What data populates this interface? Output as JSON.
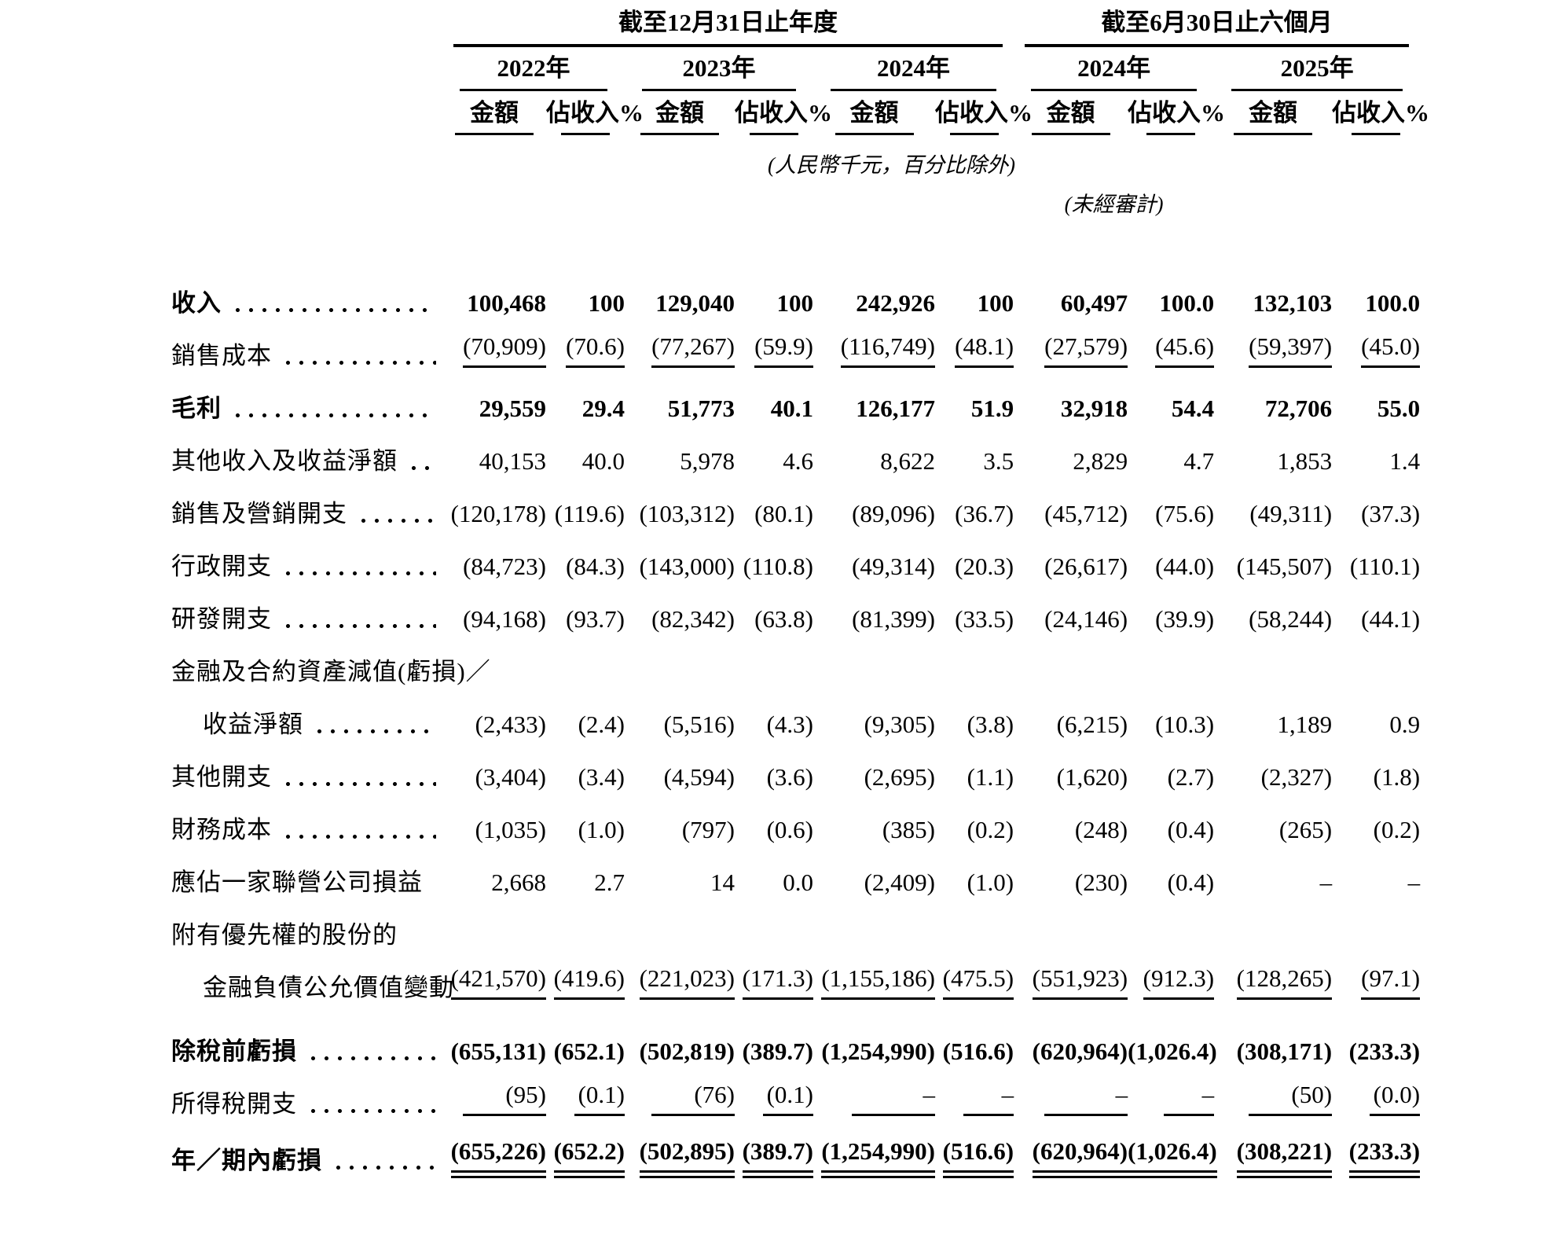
{
  "table": {
    "groups": [
      {
        "title": "截至12月31日止年度",
        "years": [
          "2022年",
          "2023年",
          "2024年"
        ]
      },
      {
        "title": "截至6月30日止六個月",
        "years": [
          "2024年",
          "2025年"
        ]
      }
    ],
    "subheaders": {
      "amount": "金額",
      "pct": "佔收入%"
    },
    "notes": {
      "units": "(人民幣千元，百分比除外)",
      "unaudited": "(未經審計)"
    },
    "rows": [
      {
        "label": "收入",
        "dots": true,
        "bold": true,
        "underline": "none",
        "values": [
          "100,468",
          "100",
          "129,040",
          "100",
          "242,926",
          "100",
          "60,497",
          "100.0",
          "132,103",
          "100.0"
        ]
      },
      {
        "label": "銷售成本",
        "dots": true,
        "bold": false,
        "underline": "single",
        "values": [
          "(70,909)",
          "(70.6)",
          "(77,267)",
          "(59.9)",
          "(116,749)",
          "(48.1)",
          "(27,579)",
          "(45.6)",
          "(59,397)",
          "(45.0)"
        ]
      },
      {
        "label": "毛利",
        "dots": true,
        "bold": true,
        "underline": "none",
        "values": [
          "29,559",
          "29.4",
          "51,773",
          "40.1",
          "126,177",
          "51.9",
          "32,918",
          "54.4",
          "72,706",
          "55.0"
        ]
      },
      {
        "label": "其他收入及收益淨額",
        "dots": true,
        "bold": false,
        "underline": "none",
        "values": [
          "40,153",
          "40.0",
          "5,978",
          "4.6",
          "8,622",
          "3.5",
          "2,829",
          "4.7",
          "1,853",
          "1.4"
        ]
      },
      {
        "label": "銷售及營銷開支",
        "dots": true,
        "bold": false,
        "underline": "none",
        "values": [
          "(120,178)",
          "(119.6)",
          "(103,312)",
          "(80.1)",
          "(89,096)",
          "(36.7)",
          "(45,712)",
          "(75.6)",
          "(49,311)",
          "(37.3)"
        ]
      },
      {
        "label": "行政開支",
        "dots": true,
        "bold": false,
        "underline": "none",
        "values": [
          "(84,723)",
          "(84.3)",
          "(143,000)",
          "(110.8)",
          "(49,314)",
          "(20.3)",
          "(26,617)",
          "(44.0)",
          "(145,507)",
          "(110.1)"
        ]
      },
      {
        "label": "研發開支",
        "dots": true,
        "bold": false,
        "underline": "none",
        "values": [
          "(94,168)",
          "(93.7)",
          "(82,342)",
          "(63.8)",
          "(81,399)",
          "(33.5)",
          "(24,146)",
          "(39.9)",
          "(58,244)",
          "(44.1)"
        ]
      },
      {
        "label": "金融及合約資產減值(虧損)／",
        "dots": false,
        "bold": false,
        "underline": "none",
        "values": null
      },
      {
        "label": "收益淨額",
        "dots": true,
        "bold": false,
        "indent": 1,
        "underline": "none",
        "values": [
          "(2,433)",
          "(2.4)",
          "(5,516)",
          "(4.3)",
          "(9,305)",
          "(3.8)",
          "(6,215)",
          "(10.3)",
          "1,189",
          "0.9"
        ]
      },
      {
        "label": "其他開支",
        "dots": true,
        "bold": false,
        "underline": "none",
        "values": [
          "(3,404)",
          "(3.4)",
          "(4,594)",
          "(3.6)",
          "(2,695)",
          "(1.1)",
          "(1,620)",
          "(2.7)",
          "(2,327)",
          "(1.8)"
        ]
      },
      {
        "label": "財務成本",
        "dots": true,
        "bold": false,
        "underline": "none",
        "values": [
          "(1,035)",
          "(1.0)",
          "(797)",
          "(0.6)",
          "(385)",
          "(0.2)",
          "(248)",
          "(0.4)",
          "(265)",
          "(0.2)"
        ]
      },
      {
        "label": "應佔一家聯營公司損益",
        "dots": true,
        "bold": false,
        "underline": "none",
        "values": [
          "2,668",
          "2.7",
          "14",
          "0.0",
          "(2,409)",
          "(1.0)",
          "(230)",
          "(0.4)",
          "–",
          "–"
        ]
      },
      {
        "label": "附有優先權的股份的",
        "dots": false,
        "bold": false,
        "underline": "none",
        "values": null
      },
      {
        "label": "金融負債公允價值變動",
        "dots": true,
        "bold": false,
        "indent": 1,
        "underline": "single",
        "values": [
          "(421,570)",
          "(419.6)",
          "(221,023)",
          "(171.3)",
          "(1,155,186)",
          "(475.5)",
          "(551,923)",
          "(912.3)",
          "(128,265)",
          "(97.1)"
        ]
      },
      {
        "label": "除稅前虧損",
        "dots": true,
        "bold": true,
        "underline": "none",
        "gapBefore": true,
        "values": [
          "(655,131)",
          "(652.1)",
          "(502,819)",
          "(389.7)",
          "(1,254,990)",
          "(516.6)",
          "(620,964)",
          "(1,026.4)",
          "(308,171)",
          "(233.3)"
        ]
      },
      {
        "label": "所得稅開支",
        "dots": true,
        "bold": false,
        "underline": "single",
        "values": [
          "(95)",
          "(0.1)",
          "(76)",
          "(0.1)",
          "–",
          "–",
          "–",
          "–",
          "(50)",
          "(0.0)"
        ]
      },
      {
        "label": "年／期內虧損",
        "dots": true,
        "bold": true,
        "underline": "double",
        "tallLast": true,
        "values": [
          "(655,226)",
          "(652.2)",
          "(502,895)",
          "(389.7)",
          "(1,254,990)",
          "(516.6)",
          "(620,964)",
          "(1,026.4)",
          "(308,221)",
          "(233.3)"
        ]
      }
    ]
  }
}
